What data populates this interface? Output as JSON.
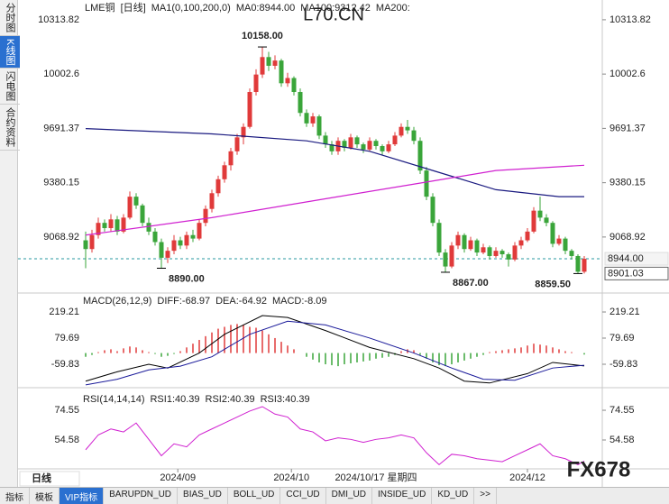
{
  "ui": {
    "side_tabs": [
      "分时图",
      "K线图",
      "闪电图",
      "合约资料"
    ],
    "active_side_tab": 1,
    "period_tab": "日线",
    "bottom_tabs": [
      "指标",
      "模板",
      "VIP指标",
      "BARUPDN_UD",
      "BIAS_UD",
      "BOLL_UD",
      "CCI_UD",
      "DMI_UD",
      "INSIDE_UD",
      "KD_UD",
      ">>"
    ],
    "active_bottom_tab": 2,
    "watermarks": [
      "L70.CN",
      "FX678"
    ]
  },
  "chart_data": [
    {
      "type": "candlestick",
      "title": "LME铜",
      "period": "[日线]",
      "labels": [
        {
          "text": "MA1(0,100,200,0)",
          "color": "#000000"
        },
        {
          "text": "MA0:8944.00",
          "color": "#000000"
        }
      ],
      "up_color": "#e03a3a",
      "down_color": "#3aa53a",
      "ylim": [
        8748,
        10427
      ],
      "yticks": [
        10313.82,
        10002.6,
        9691.37,
        9380.15,
        9068.92
      ],
      "ohlc": [
        [
          9050,
          9100,
          8890,
          9000
        ],
        [
          9000,
          9110,
          8980,
          9080
        ],
        [
          9080,
          9180,
          9060,
          9150
        ],
        [
          9150,
          9170,
          9100,
          9120
        ],
        [
          9120,
          9200,
          9100,
          9170
        ],
        [
          9170,
          9190,
          9080,
          9100
        ],
        [
          9100,
          9200,
          9090,
          9180
        ],
        [
          9180,
          9330,
          9170,
          9300
        ],
        [
          9300,
          9320,
          9230,
          9250
        ],
        [
          9250,
          9260,
          9130,
          9150
        ],
        [
          9150,
          9180,
          9080,
          9100
        ],
        [
          9100,
          9120,
          9020,
          9040
        ],
        [
          9040,
          9060,
          8890,
          8950
        ],
        [
          8950,
          9010,
          8920,
          8990
        ],
        [
          8990,
          9080,
          8970,
          9050
        ],
        [
          9050,
          9070,
          9000,
          9020
        ],
        [
          9020,
          9100,
          9000,
          9080
        ],
        [
          9080,
          9110,
          9040,
          9060
        ],
        [
          9060,
          9170,
          9050,
          9150
        ],
        [
          9150,
          9250,
          9130,
          9230
        ],
        [
          9230,
          9340,
          9210,
          9320
        ],
        [
          9320,
          9420,
          9300,
          9400
        ],
        [
          9400,
          9500,
          9380,
          9480
        ],
        [
          9480,
          9580,
          9450,
          9560
        ],
        [
          9560,
          9660,
          9540,
          9640
        ],
        [
          9640,
          9720,
          9600,
          9700
        ],
        [
          9700,
          9920,
          9690,
          9900
        ],
        [
          9900,
          10030,
          9880,
          10000
        ],
        [
          10000,
          10158,
          9980,
          10100
        ],
        [
          10100,
          10130,
          10020,
          10050
        ],
        [
          10050,
          10110,
          10030,
          10080
        ],
        [
          10080,
          10090,
          9930,
          9950
        ],
        [
          9950,
          10010,
          9930,
          9980
        ],
        [
          9980,
          9990,
          9880,
          9900
        ],
        [
          9900,
          9920,
          9760,
          9780
        ],
        [
          9780,
          9800,
          9700,
          9720
        ],
        [
          9720,
          9780,
          9700,
          9760
        ],
        [
          9760,
          9770,
          9630,
          9650
        ],
        [
          9650,
          9670,
          9580,
          9600
        ],
        [
          9600,
          9620,
          9540,
          9560
        ],
        [
          9560,
          9640,
          9540,
          9620
        ],
        [
          9620,
          9630,
          9560,
          9580
        ],
        [
          9580,
          9660,
          9570,
          9640
        ],
        [
          9640,
          9650,
          9580,
          9600
        ],
        [
          9600,
          9610,
          9550,
          9570
        ],
        [
          9570,
          9640,
          9560,
          9620
        ],
        [
          9620,
          9630,
          9570,
          9590
        ],
        [
          9590,
          9600,
          9540,
          9560
        ],
        [
          9560,
          9620,
          9550,
          9600
        ],
        [
          9600,
          9670,
          9590,
          9650
        ],
        [
          9650,
          9720,
          9640,
          9700
        ],
        [
          9700,
          9740,
          9660,
          9680
        ],
        [
          9680,
          9700,
          9600,
          9620
        ],
        [
          9620,
          9640,
          9430,
          9450
        ],
        [
          9450,
          9470,
          9280,
          9300
        ],
        [
          9300,
          9320,
          9130,
          9150
        ],
        [
          9150,
          9170,
          8960,
          8980
        ],
        [
          8980,
          9000,
          8867,
          8900
        ],
        [
          8900,
          9040,
          8890,
          9020
        ],
        [
          9020,
          9100,
          9000,
          9080
        ],
        [
          9080,
          9090,
          8980,
          9000
        ],
        [
          9000,
          9070,
          8990,
          9050
        ],
        [
          9050,
          9060,
          8960,
          8980
        ],
        [
          8980,
          9030,
          8970,
          9010
        ],
        [
          9010,
          9020,
          8940,
          8960
        ],
        [
          8960,
          9010,
          8950,
          8990
        ],
        [
          8990,
          9000,
          8950,
          8970
        ],
        [
          8970,
          8980,
          8900,
          8940
        ],
        [
          8940,
          9040,
          8930,
          9020
        ],
        [
          9020,
          9070,
          9000,
          9050
        ],
        [
          9050,
          9120,
          9040,
          9100
        ],
        [
          9100,
          9240,
          9090,
          9220
        ],
        [
          9220,
          9300,
          9160,
          9180
        ],
        [
          9180,
          9200,
          9130,
          9150
        ],
        [
          9150,
          9160,
          9010,
          9030
        ],
        [
          9030,
          9080,
          9020,
          9060
        ],
        [
          9060,
          9070,
          8970,
          8990
        ],
        [
          8990,
          9000,
          8940,
          8960
        ],
        [
          8960,
          8970,
          8859.5,
          8870
        ],
        [
          8870,
          8960,
          8860,
          8944
        ]
      ],
      "series": [
        {
          "name": "MA100:9312.42",
          "color": "#1a1a80",
          "x": [
            0,
            20,
            35,
            45,
            55,
            65,
            75,
            79
          ],
          "values": [
            9690,
            9660,
            9620,
            9560,
            9450,
            9340,
            9300,
            9300
          ]
        },
        {
          "name": "MA200:",
          "color": "#d020d0",
          "x": [
            0,
            20,
            40,
            55,
            65,
            79
          ],
          "values": [
            9080,
            9180,
            9300,
            9390,
            9450,
            9480
          ]
        }
      ],
      "last_price": 8944,
      "price_labels": [
        {
          "value": 8944,
          "label": "8944.00"
        },
        {
          "value": 8901.03,
          "label": "8901.03"
        }
      ],
      "annotations": [
        {
          "index": 28,
          "value": 10158,
          "label": "10158.00",
          "color": "#d03030"
        },
        {
          "index": 12,
          "value": 8890,
          "label": "8890.00",
          "color": "#5aa05a"
        },
        {
          "index": 57,
          "value": 8867,
          "label": "8867.00",
          "color": "#5aa05a"
        },
        {
          "index": 78,
          "value": 8859.5,
          "label": "8859.50",
          "color": "#5aa05a"
        }
      ]
    },
    {
      "type": "macd",
      "title": "MACD(26,12,9)",
      "ylim": [
        -185,
        306
      ],
      "yticks": [
        219.21,
        79.69,
        -59.83
      ],
      "series": [
        {
          "name": "DIFF:-68.97",
          "color": "#000000",
          "x": [
            0,
            5,
            10,
            13,
            18,
            22,
            28,
            32,
            38,
            45,
            52,
            56,
            60,
            64,
            70,
            74,
            79
          ],
          "values": [
            -150,
            -100,
            -60,
            -80,
            0,
            100,
            200,
            190,
            120,
            30,
            -30,
            -80,
            -150,
            -160,
            -110,
            -50,
            -69
          ]
        },
        {
          "name": "DEA:-64.92",
          "color": "#1a1a9a",
          "x": [
            0,
            5,
            10,
            15,
            20,
            26,
            32,
            38,
            45,
            52,
            58,
            63,
            68,
            74,
            79
          ],
          "values": [
            -170,
            -140,
            -90,
            -70,
            -20,
            100,
            170,
            150,
            80,
            0,
            -80,
            -140,
            -145,
            -80,
            -65
          ]
        }
      ],
      "histogram": {
        "name": "MACD:-8.09",
        "color": "#d020d0",
        "up_color": "#e03a3a",
        "down_color": "#3aa53a",
        "values": [
          -20,
          -10,
          5,
          15,
          20,
          10,
          25,
          35,
          30,
          15,
          5,
          -5,
          -20,
          -15,
          -5,
          10,
          30,
          50,
          70,
          90,
          110,
          130,
          140,
          150,
          155,
          150,
          140,
          135,
          120,
          100,
          80,
          60,
          40,
          20,
          0,
          -20,
          -35,
          -50,
          -60,
          -65,
          -70,
          -60,
          -55,
          -50,
          -45,
          -40,
          -30,
          -25,
          -20,
          -10,
          10,
          20,
          15,
          -10,
          -30,
          -50,
          -65,
          -70,
          -60,
          -50,
          -40,
          -30,
          -20,
          -10,
          5,
          10,
          15,
          20,
          25,
          30,
          40,
          50,
          45,
          40,
          30,
          20,
          10,
          5,
          0,
          -8
        ]
      }
    },
    {
      "type": "line",
      "title": "RSI(14,14,14)",
      "ylim": [
        35.2,
        87.9
      ],
      "yticks": [
        74.55,
        54.58
      ],
      "color": "#d020d0",
      "series_labels": [
        {
          "name": "RSI1:40.39",
          "color": "#000000"
        },
        {
          "name": "RSI2:40.39",
          "color": "#1a1a9a"
        },
        {
          "name": "RSI3:40.39",
          "color": "#d020d0"
        }
      ],
      "x": [
        0,
        2,
        4,
        6,
        8,
        10,
        12,
        14,
        16,
        18,
        20,
        22,
        24,
        26,
        28,
        30,
        32,
        34,
        36,
        38,
        40,
        42,
        44,
        46,
        48,
        50,
        52,
        54,
        56,
        58,
        60,
        62,
        64,
        66,
        68,
        70,
        72,
        74,
        76,
        78,
        79
      ],
      "values": [
        48,
        58,
        62,
        60,
        66,
        55,
        44,
        52,
        50,
        58,
        62,
        66,
        70,
        74,
        77,
        72,
        70,
        62,
        60,
        54,
        56,
        55,
        53,
        55,
        56,
        58,
        56,
        46,
        38,
        45,
        44,
        42,
        41,
        40,
        44,
        48,
        52,
        44,
        42,
        38,
        40.39
      ],
      "xticks": [
        {
          "value": 14.6,
          "label": "2024/09"
        },
        {
          "value": 32.6,
          "label": "2024/10"
        },
        {
          "value": 70,
          "label": "2024/12"
        }
      ],
      "cursor": {
        "value": 46,
        "label": "2024/10/17 星期四"
      }
    }
  ]
}
